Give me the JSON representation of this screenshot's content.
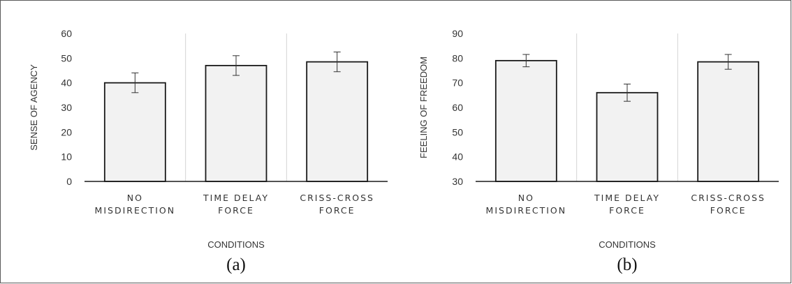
{
  "chart_data": [
    {
      "type": "bar",
      "panel_label": "(a)",
      "categories": [
        [
          "NO",
          "MISDIRECTION"
        ],
        [
          "TIME DELAY",
          "FORCE"
        ],
        [
          "CRISS-CROSS",
          "FORCE"
        ]
      ],
      "values": [
        40,
        47,
        48.5
      ],
      "error": [
        4,
        4,
        4
      ],
      "xlabel": "CONDITIONS",
      "ylabel": "SENSE OF AGENCY",
      "ylim": [
        0,
        60
      ],
      "yticks": [
        0,
        10,
        20,
        30,
        40,
        50,
        60
      ],
      "grid": false,
      "bar_color": "#f2f2f2"
    },
    {
      "type": "bar",
      "panel_label": "(b)",
      "categories": [
        [
          "NO",
          "MISDIRECTION"
        ],
        [
          "TIME DELAY",
          "FORCE"
        ],
        [
          "CRISS-CROSS",
          "FORCE"
        ]
      ],
      "values": [
        79,
        66,
        78.5
      ],
      "error": [
        2.5,
        3.5,
        3
      ],
      "xlabel": "CONDITIONS",
      "ylabel": "FEELING OF FREEDOM",
      "ylim": [
        30,
        90
      ],
      "yticks": [
        30,
        40,
        50,
        60,
        70,
        80,
        90
      ],
      "grid": false,
      "bar_color": "#f2f2f2"
    }
  ]
}
